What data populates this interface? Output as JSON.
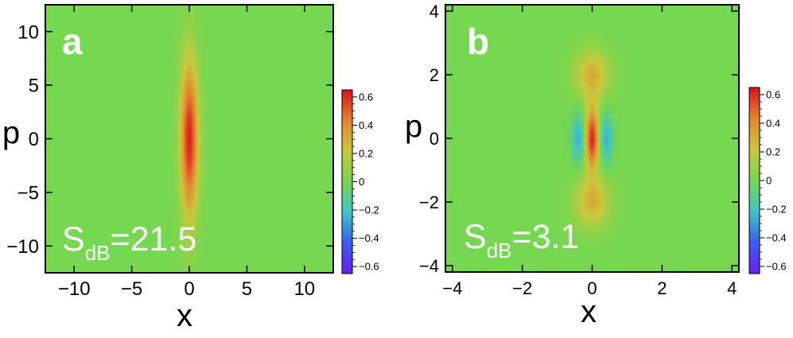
{
  "chart_data": [
    {
      "type": "heatmap",
      "panel_label": "a",
      "annotation": {
        "main": "S",
        "subscript": "dB",
        "value": "=21.5"
      },
      "xlabel": "x",
      "ylabel": "p",
      "xlim": [
        -12.5,
        12.5
      ],
      "ylim": [
        -12.5,
        12.5
      ],
      "xticks": [
        -10,
        -5,
        0,
        5,
        10
      ],
      "xtick_labels": [
        "−10",
        "−5",
        "0",
        "5",
        "10"
      ],
      "yticks": [
        -10,
        -5,
        0,
        5,
        10
      ],
      "ytick_labels": [
        "−10",
        "−5",
        "0",
        "5",
        "10"
      ],
      "field": {
        "form": "squeezed-gaussian",
        "sigma_x": 0.55,
        "sigma_p": 5.2,
        "peak": 0.62
      },
      "colorbar": {
        "range": [
          -0.65,
          0.65
        ],
        "ticks": [
          0.6,
          0.4,
          0.2,
          0,
          -0.2,
          -0.4,
          -0.6
        ],
        "tick_labels": [
          "0.6",
          "0.4",
          "0.2",
          "0",
          "−0.2",
          "−0.4",
          "−0.6"
        ]
      }
    },
    {
      "type": "heatmap",
      "panel_label": "b",
      "annotation": {
        "main": "S",
        "subscript": "dB",
        "value": "=3.1"
      },
      "xlabel": "x",
      "ylabel": "p",
      "xlim": [
        -4.2,
        4.2
      ],
      "ylim": [
        -4.2,
        4.2
      ],
      "xticks": [
        -4,
        -2,
        0,
        2,
        4
      ],
      "xtick_labels": [
        "−4",
        "−2",
        "0",
        "2",
        "4"
      ],
      "yticks": [
        -4,
        -2,
        0,
        2,
        4
      ],
      "ytick_labels": [
        "−4",
        "−2",
        "0",
        "2",
        "4"
      ],
      "field": {
        "form": "cat-state",
        "center": {
          "sigma_x": 0.15,
          "sigma_p": 0.7,
          "peak": 0.62
        },
        "side_lobes": [
          {
            "x": -0.38,
            "p": 0,
            "sigma_x": 0.14,
            "sigma_p": 0.55,
            "peak": -0.28
          },
          {
            "x": 0.38,
            "p": 0,
            "sigma_x": 0.14,
            "sigma_p": 0.55,
            "peak": -0.28
          }
        ],
        "p_lobes": [
          {
            "x": 0,
            "p": 2.0,
            "sigma_x": 0.35,
            "sigma_p": 0.55,
            "peak": 0.3
          },
          {
            "x": 0,
            "p": -2.0,
            "sigma_x": 0.35,
            "sigma_p": 0.55,
            "peak": 0.3
          }
        ]
      },
      "colorbar": {
        "range": [
          -0.65,
          0.65
        ],
        "ticks": [
          0.6,
          0.4,
          0.2,
          0,
          -0.2,
          -0.4,
          -0.6
        ],
        "tick_labels": [
          "0.6",
          "0.4",
          "0.2",
          "0",
          "−0.2",
          "−0.4",
          "−0.6"
        ]
      }
    }
  ],
  "colors": {
    "background": "#ffffff",
    "frame": "#000000",
    "zero_level": "#76d750",
    "panel_label": "#ffffff",
    "colormap": [
      "#6e1ef0",
      "#3a5cf5",
      "#3ec6c8",
      "#76d750",
      "#c9c93c",
      "#e5862f",
      "#d9141b"
    ]
  }
}
